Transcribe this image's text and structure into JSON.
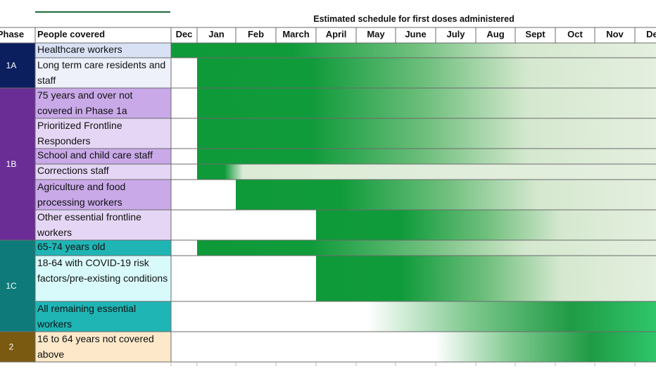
{
  "title": "Estimated schedule for first doses administered",
  "header": {
    "phase": "Phase",
    "people": "People covered"
  },
  "chart_data": {
    "type": "table",
    "title": "Estimated schedule for first doses administered",
    "months": [
      "Dec",
      "Jan",
      "Feb",
      "March",
      "April",
      "May",
      "June",
      "July",
      "Aug",
      "Sept",
      "Oct",
      "Nov",
      "Dec"
    ],
    "phases": [
      {
        "label": "1A",
        "color": "#0b1f5e",
        "rows": [
          0,
          1
        ]
      },
      {
        "label": "1B",
        "color": "#6a2d95",
        "rows": [
          2,
          3,
          4,
          5,
          6,
          7
        ]
      },
      {
        "label": "1C",
        "color": "#0e7a7a",
        "rows": [
          8,
          9,
          10
        ]
      },
      {
        "label": "2",
        "color": "#7a5a10",
        "rows": [
          11
        ]
      }
    ],
    "rows": [
      {
        "people": "Healthcare workers",
        "cell_color": "#d9e2f5",
        "start_month": "Dec",
        "fade": "long"
      },
      {
        "people": "Long term care residents and staff",
        "cell_color": "#eef1fa",
        "start_month": "Jan",
        "fade": "long"
      },
      {
        "people": "75 years and over not covered in Phase 1a",
        "cell_color": "#c9a9e8",
        "start_month": "Jan",
        "fade": "long"
      },
      {
        "people": "Prioritized Frontline Responders",
        "cell_color": "#e5d6f5",
        "start_month": "Jan",
        "fade": "long"
      },
      {
        "people": "School and child care staff",
        "cell_color": "#c9a9e8",
        "start_month": "Jan",
        "fade": "long"
      },
      {
        "people": "Corrections staff",
        "cell_color": "#e5d6f5",
        "start_month": "Jan",
        "fade": "short"
      },
      {
        "people": "Agriculture and food processing workers",
        "cell_color": "#c9a9e8",
        "start_month": "Feb",
        "fade": "long"
      },
      {
        "people": "Other essential frontline workers",
        "cell_color": "#e5d6f5",
        "start_month": "April",
        "fade": "long"
      },
      {
        "people": "65-74 years old",
        "cell_color": "#1fb5b5",
        "start_month": "Jan",
        "fade": "long"
      },
      {
        "people": "18-64 with COVID-19 risk factors/pre-existing conditions",
        "cell_color": "#d9fafa",
        "start_month": "April",
        "fade": "long"
      },
      {
        "people": "All remaining essential workers",
        "cell_color": "#1fb5b5",
        "start_month": "April",
        "fade": "rise"
      },
      {
        "people": "16 to 64 years not covered above",
        "cell_color": "#fde9c9",
        "start_month": "June",
        "fade": "rise"
      }
    ]
  }
}
